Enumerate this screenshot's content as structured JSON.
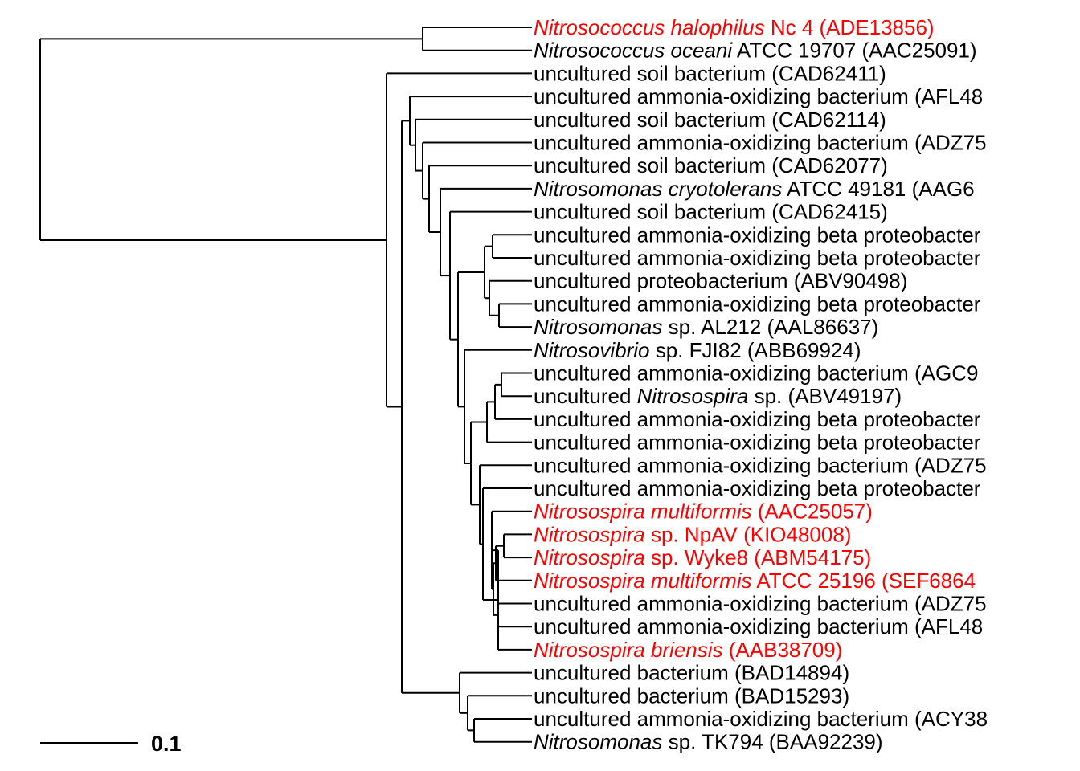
{
  "colors": {
    "branch": "#000000",
    "default_label": "#000000",
    "highlight": "#ff0000"
  },
  "scale_bar": {
    "label": "0.1"
  },
  "tips": [
    {
      "segments": [
        {
          "t": "Nitrosococcus halophilus",
          "i": true
        },
        {
          "t": " Nc 4 (ADE13856)"
        }
      ],
      "highlight": true
    },
    {
      "segments": [
        {
          "t": "Nitrosococcus oceani",
          "i": true
        },
        {
          "t": " ATCC 19707 (AAC25091)"
        }
      ]
    },
    {
      "segments": [
        {
          "t": "uncultured soil bacterium (CAD62411)"
        }
      ]
    },
    {
      "segments": [
        {
          "t": "uncultured ammonia-oxidizing bacterium (AFL48"
        }
      ]
    },
    {
      "segments": [
        {
          "t": "uncultured soil bacterium (CAD62114)"
        }
      ]
    },
    {
      "segments": [
        {
          "t": "uncultured ammonia-oxidizing bacterium (ADZ75"
        }
      ]
    },
    {
      "segments": [
        {
          "t": "uncultured soil bacterium (CAD62077)"
        }
      ]
    },
    {
      "segments": [
        {
          "t": "Nitrosomonas cryotolerans",
          "i": true
        },
        {
          "t": " ATCC 49181 (AAG6"
        }
      ]
    },
    {
      "segments": [
        {
          "t": "uncultured soil bacterium (CAD62415)"
        }
      ]
    },
    {
      "segments": [
        {
          "t": "uncultured ammonia-oxidizing beta proteobacter"
        }
      ]
    },
    {
      "segments": [
        {
          "t": "uncultured ammonia-oxidizing beta proteobacter"
        }
      ]
    },
    {
      "segments": [
        {
          "t": "uncultured proteobacterium (ABV90498)"
        }
      ]
    },
    {
      "segments": [
        {
          "t": "uncultured ammonia-oxidizing beta proteobacter"
        }
      ]
    },
    {
      "segments": [
        {
          "t": "Nitrosomonas",
          "i": true
        },
        {
          "t": " sp. AL212 (AAL86637)"
        }
      ]
    },
    {
      "segments": [
        {
          "t": "Nitrosovibrio",
          "i": true
        },
        {
          "t": " sp. FJI82 (ABB69924)"
        }
      ]
    },
    {
      "segments": [
        {
          "t": "uncultured ammonia-oxidizing bacterium (AGC9"
        }
      ]
    },
    {
      "segments": [
        {
          "t": "uncultured "
        },
        {
          "t": "Nitrosospira",
          "i": true
        },
        {
          "t": " sp. (ABV49197)"
        }
      ]
    },
    {
      "segments": [
        {
          "t": "uncultured ammonia-oxidizing beta proteobacter"
        }
      ]
    },
    {
      "segments": [
        {
          "t": "uncultured ammonia-oxidizing beta proteobacter"
        }
      ]
    },
    {
      "segments": [
        {
          "t": "uncultured ammonia-oxidizing bacterium (ADZ75"
        }
      ]
    },
    {
      "segments": [
        {
          "t": "uncultured ammonia-oxidizing beta proteobacter"
        }
      ]
    },
    {
      "segments": [
        {
          "t": "Nitrosospira multiformis",
          "i": true
        },
        {
          "t": " (AAC25057)"
        }
      ],
      "highlight": true
    },
    {
      "segments": [
        {
          "t": "Nitrosospira",
          "i": true
        },
        {
          "t": " sp. NpAV (KIO48008)"
        }
      ],
      "highlight": true
    },
    {
      "segments": [
        {
          "t": "Nitrosospira",
          "i": true
        },
        {
          "t": " sp. Wyke8 (ABM54175)"
        }
      ],
      "highlight": true
    },
    {
      "segments": [
        {
          "t": "Nitrosospira multiformis",
          "i": true
        },
        {
          "t": " ATCC 25196 (SEF6864"
        }
      ],
      "highlight": true
    },
    {
      "segments": [
        {
          "t": "uncultured ammonia-oxidizing bacterium (ADZ75"
        }
      ]
    },
    {
      "segments": [
        {
          "t": "uncultured ammonia-oxidizing bacterium (AFL48"
        }
      ]
    },
    {
      "segments": [
        {
          "t": "Nitrosospira briensis",
          "i": true
        },
        {
          "t": " (AAB38709)"
        }
      ],
      "highlight": true
    },
    {
      "segments": [
        {
          "t": "uncultured bacterium (BAD14894)"
        }
      ]
    },
    {
      "segments": [
        {
          "t": "uncultured bacterium (BAD15293)"
        }
      ]
    },
    {
      "segments": [
        {
          "t": "uncultured ammonia-oxidizing bacterium (ACY38"
        }
      ]
    },
    {
      "segments": [
        {
          "t": "Nitrosomonas",
          "i": true
        },
        {
          "t": " sp. TK794 (BAA92239)"
        }
      ]
    }
  ]
}
